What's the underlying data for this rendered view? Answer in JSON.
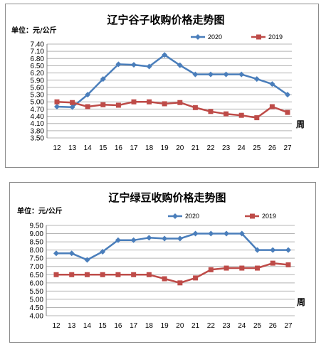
{
  "chart_data": [
    {
      "type": "line",
      "title": "辽宁谷子收购价格走势图",
      "unit_label": "单位：元/公斤",
      "xlabel": "周",
      "ylabel": "",
      "x": [
        12,
        13,
        14,
        15,
        16,
        17,
        18,
        19,
        20,
        21,
        22,
        23,
        24,
        25,
        26,
        27
      ],
      "ylim": [
        3.5,
        7.4
      ],
      "yticks": [
        "3.50",
        "3.80",
        "4.10",
        "4.40",
        "4.70",
        "5.00",
        "5.30",
        "5.60",
        "5.90",
        "6.20",
        "6.50",
        "6.80",
        "7.10",
        "7.40"
      ],
      "grid": true,
      "legend_position": "top-right",
      "series": [
        {
          "name": "2020",
          "color": "#4a7ebb",
          "marker": "diamond",
          "values": [
            4.8,
            4.78,
            5.3,
            5.95,
            6.56,
            6.54,
            6.47,
            6.95,
            6.52,
            6.14,
            6.14,
            6.14,
            6.14,
            5.95,
            5.74,
            5.3
          ]
        },
        {
          "name": "2019",
          "color": "#be4b48",
          "marker": "square",
          "values": [
            5.0,
            4.97,
            4.8,
            4.88,
            4.86,
            5.0,
            5.0,
            4.92,
            4.97,
            4.76,
            4.6,
            4.5,
            4.44,
            4.34,
            4.8,
            4.56
          ]
        }
      ]
    },
    {
      "type": "line",
      "title": "辽宁绿豆收购价格走势图",
      "unit_label": "单位：元/公斤",
      "xlabel": "周",
      "ylabel": "",
      "x": [
        12,
        13,
        14,
        15,
        16,
        17,
        18,
        19,
        20,
        21,
        22,
        23,
        24,
        25,
        26,
        27
      ],
      "ylim": [
        4.0,
        9.5
      ],
      "yticks": [
        "4.00",
        "4.50",
        "5.00",
        "5.50",
        "6.00",
        "6.50",
        "7.00",
        "7.50",
        "8.00",
        "8.50",
        "9.00",
        "9.50"
      ],
      "grid": true,
      "legend_position": "top-right",
      "series": [
        {
          "name": "2020",
          "color": "#4a7ebb",
          "marker": "diamond",
          "values": [
            7.8,
            7.8,
            7.4,
            7.9,
            8.6,
            8.6,
            8.75,
            8.7,
            8.7,
            9.0,
            9.0,
            9.0,
            9.0,
            8.0,
            8.0,
            8.0
          ]
        },
        {
          "name": "2019",
          "color": "#be4b48",
          "marker": "square",
          "values": [
            6.5,
            6.5,
            6.5,
            6.5,
            6.5,
            6.5,
            6.5,
            6.25,
            6.0,
            6.3,
            6.8,
            6.9,
            6.9,
            6.9,
            7.2,
            7.1
          ]
        }
      ]
    }
  ]
}
